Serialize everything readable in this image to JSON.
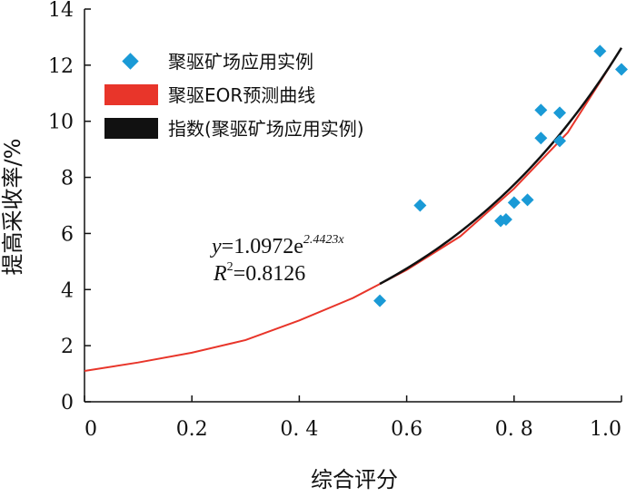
{
  "chart_data": {
    "type": "scatter",
    "xlabel": "综合评分",
    "ylabel": "提高采收率/%",
    "xlim": [
      0,
      1.0
    ],
    "ylim": [
      0,
      14
    ],
    "x_ticks": [
      "0",
      "0.2",
      "0. 4",
      "0.6",
      "0. 8",
      "1.0"
    ],
    "x_tick_values": [
      0,
      0.2,
      0.4,
      0.6,
      0.8,
      1.0
    ],
    "y_ticks": [
      "0",
      "2",
      "4",
      "6",
      "8",
      "10",
      "12",
      "14"
    ],
    "y_tick_values": [
      0,
      2,
      4,
      6,
      8,
      10,
      12,
      14
    ],
    "series": [
      {
        "name": "聚驱矿场应用实例",
        "kind": "scatter",
        "color": "#1a9ad6",
        "marker": "diamond",
        "x": [
          0.55,
          0.625,
          0.775,
          0.785,
          0.8,
          0.825,
          0.85,
          0.85,
          0.885,
          0.885,
          0.96,
          1.0
        ],
        "y": [
          3.6,
          7.0,
          6.45,
          6.5,
          7.1,
          7.2,
          10.4,
          9.4,
          10.3,
          9.3,
          12.5,
          11.85
        ]
      },
      {
        "name": "聚驱EOR预测曲线",
        "kind": "line",
        "color": "#e8352a",
        "x": [
          0,
          0.1,
          0.2,
          0.3,
          0.4,
          0.5,
          0.55,
          0.6,
          0.7,
          0.8,
          0.9,
          0.98
        ],
        "y": [
          1.1,
          1.4,
          1.75,
          2.2,
          2.9,
          3.7,
          4.2,
          4.7,
          5.9,
          7.6,
          9.6,
          12.0
        ]
      },
      {
        "name": "指数(聚驱矿场应用实例)",
        "kind": "trendline",
        "color": "#111111",
        "model": "exponential",
        "a": 1.0972,
        "b": 2.4423,
        "x_range": [
          0.55,
          1.0
        ]
      }
    ],
    "legend": {
      "position": "top-left",
      "entries": [
        "聚驱矿场应用实例",
        "聚驱EOR预测曲线",
        "指数(聚驱矿场应用实例)"
      ]
    },
    "annotation": {
      "eq_y": "y",
      "eq_equals": "=1.0972e",
      "eq_exponent": "2.4423x",
      "r2_r": "R",
      "r2_sup": "2",
      "r2_value": "=0.8126"
    }
  }
}
